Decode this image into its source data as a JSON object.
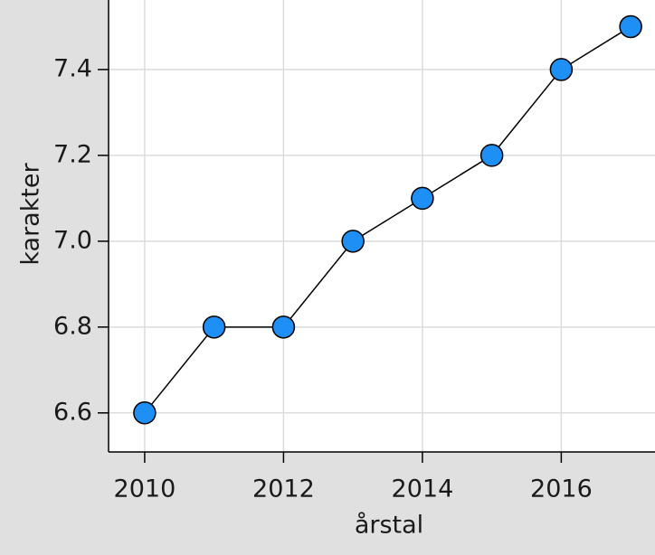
{
  "chart_data": {
    "type": "line",
    "x_label": "årstal",
    "y_label": "karakter",
    "x": [
      2010,
      2011,
      2012,
      2013,
      2014,
      2015,
      2016,
      2017
    ],
    "values": [
      6.6,
      6.8,
      6.8,
      7.0,
      7.1,
      7.2,
      7.4,
      7.5
    ],
    "color": "#1e8ff5",
    "line_color": "#000000",
    "xlim": [
      2009.48,
      2017.35
    ],
    "ylim": [
      6.509,
      7.562
    ],
    "xticks": [
      2010,
      2012,
      2014,
      2016
    ],
    "yticks": [
      {
        "value": 6.6,
        "label": "6.6"
      },
      {
        "value": 6.8,
        "label": "6.8"
      },
      {
        "value": 7.0,
        "label": "7.0"
      },
      {
        "value": 7.2,
        "label": "7.2"
      },
      {
        "value": 7.4,
        "label": "7.4"
      }
    ],
    "grid": true
  }
}
